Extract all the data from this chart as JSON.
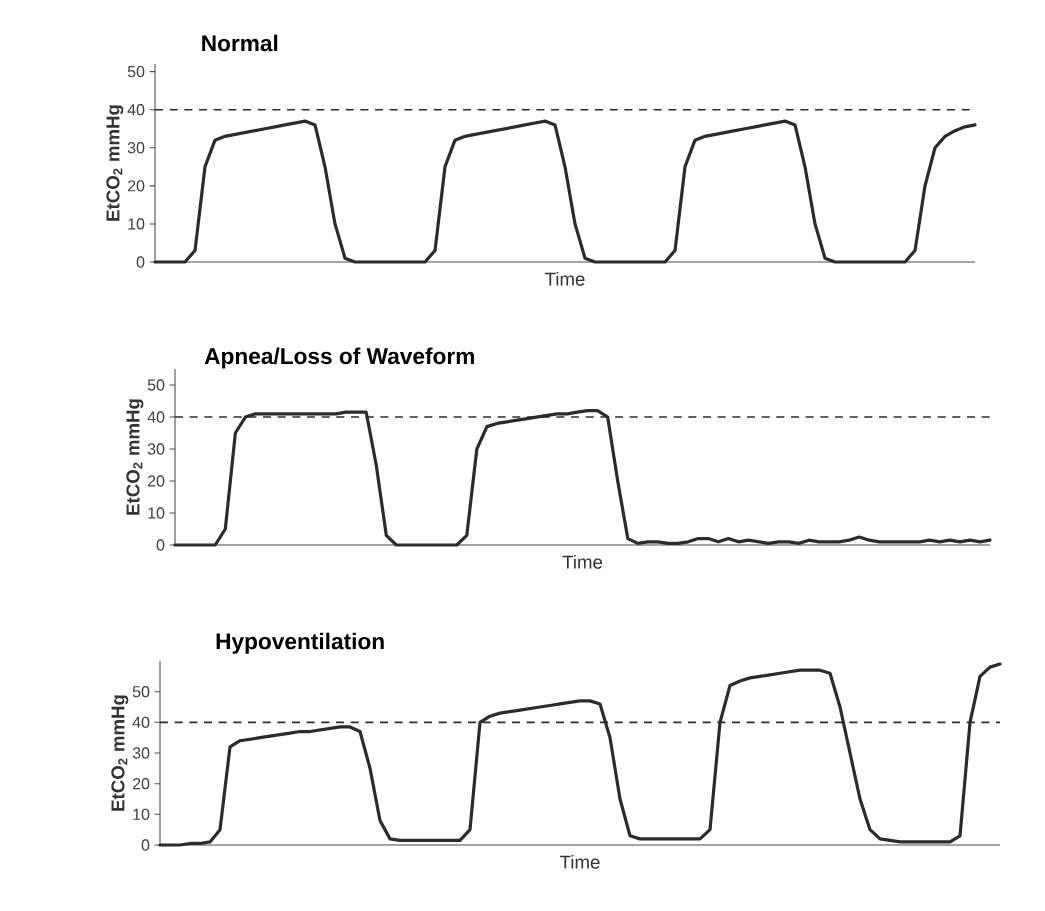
{
  "chart_data": [
    {
      "type": "line",
      "title": "Normal",
      "xlabel": "Time",
      "ylabel": "EtCO$_{2}$ mmHg",
      "color": "#2b2b2b",
      "ylim": [
        0,
        52
      ],
      "yticks": [
        0,
        10,
        20,
        30,
        40,
        50
      ],
      "tick_labels": "y",
      "ref_lines": [
        {
          "axis": "y",
          "value": 40,
          "line_style": "dashed",
          "color": "#2b2b2b"
        }
      ],
      "categories": [
        null,
        null,
        null,
        null,
        null,
        null,
        null,
        null,
        null,
        null,
        null,
        null,
        null,
        null,
        null,
        null,
        null,
        null,
        null,
        null,
        null,
        null,
        null,
        null,
        null,
        null,
        null,
        null,
        null,
        null,
        null,
        null,
        null,
        null,
        null,
        null,
        null,
        null,
        null,
        null,
        null,
        null,
        null,
        null,
        null,
        null,
        null,
        null,
        null,
        null,
        null,
        null,
        null,
        null,
        null,
        null,
        null,
        null,
        null,
        null,
        null,
        null,
        null,
        null,
        null,
        null,
        null,
        null,
        null,
        null,
        null,
        null,
        null,
        null,
        null,
        null,
        null,
        null,
        null,
        null,
        null,
        null,
        null
      ],
      "values": [
        0,
        0,
        0,
        0,
        3,
        25,
        32,
        33,
        33.5,
        34,
        34.5,
        35,
        35.5,
        36,
        36.5,
        37,
        36,
        25,
        10,
        1,
        0,
        0,
        0,
        0,
        0,
        0,
        0,
        0,
        3,
        25,
        32,
        33,
        33.5,
        34,
        34.5,
        35,
        35.5,
        36,
        36.5,
        37,
        36,
        25,
        10,
        1,
        0,
        0,
        0,
        0,
        0,
        0,
        0,
        0,
        3,
        25,
        32,
        33,
        33.5,
        34,
        34.5,
        35,
        35.5,
        36,
        36.5,
        37,
        36,
        25,
        10,
        1,
        0,
        0,
        0,
        0,
        0,
        0,
        0,
        0,
        3,
        20,
        30,
        33,
        34.5,
        35.5,
        36
      ]
    },
    {
      "type": "line",
      "title": "Apnea/Loss of Waveform",
      "xlabel": "Time",
      "ylabel": "EtCO$_{2}$ mmHg",
      "color": "#2b2b2b",
      "ylim": [
        0,
        55
      ],
      "yticks": [
        0,
        10,
        20,
        30,
        40,
        50
      ],
      "tick_labels": "y",
      "ref_lines": [
        {
          "axis": "y",
          "value": 40,
          "line_style": "dashed",
          "color": "#2b2b2b"
        }
      ],
      "categories": [
        null,
        null,
        null,
        null,
        null,
        null,
        null,
        null,
        null,
        null,
        null,
        null,
        null,
        null,
        null,
        null,
        null,
        null,
        null,
        null,
        null,
        null,
        null,
        null,
        null,
        null,
        null,
        null,
        null,
        null,
        null,
        null,
        null,
        null,
        null,
        null,
        null,
        null,
        null,
        null,
        null,
        null,
        null,
        null,
        null,
        null,
        null,
        null,
        null,
        null,
        null,
        null,
        null,
        null,
        null,
        null,
        null,
        null,
        null,
        null,
        null,
        null,
        null,
        null,
        null,
        null,
        null,
        null,
        null,
        null,
        null,
        null,
        null,
        null,
        null,
        null,
        null,
        null,
        null,
        null,
        null,
        null
      ],
      "values": [
        0,
        0,
        0,
        0,
        0,
        5,
        35,
        40,
        41,
        41,
        41,
        41,
        41,
        41,
        41,
        41,
        41,
        41.5,
        41.5,
        41.5,
        25,
        3,
        0,
        0,
        0,
        0,
        0,
        0,
        0,
        3,
        30,
        37,
        38,
        38.5,
        39,
        39.5,
        40,
        40.5,
        41,
        41,
        41.5,
        42,
        42,
        40,
        20,
        2,
        0.5,
        1,
        1,
        0.5,
        0.5,
        1,
        2,
        2,
        1,
        2,
        1,
        1.5,
        1,
        0.5,
        1,
        1,
        0.5,
        1.5,
        1,
        1,
        1,
        1.5,
        2.5,
        1.5,
        1,
        1,
        1,
        1,
        1,
        1.5,
        1,
        1.5,
        1,
        1.5,
        1,
        1.5
      ]
    },
    {
      "type": "line",
      "title": "Hypoventilation",
      "xlabel": "Time",
      "ylabel": "EtCO$_{2}$ mmHg",
      "color": "#2b2b2b",
      "ylim": [
        0,
        60
      ],
      "yticks": [
        0,
        10,
        20,
        30,
        40,
        50
      ],
      "tick_labels": "y",
      "ref_lines": [
        {
          "axis": "y",
          "value": 40,
          "line_style": "dashed",
          "color": "#2b2b2b"
        }
      ],
      "categories": [
        null,
        null,
        null,
        null,
        null,
        null,
        null,
        null,
        null,
        null,
        null,
        null,
        null,
        null,
        null,
        null,
        null,
        null,
        null,
        null,
        null,
        null,
        null,
        null,
        null,
        null,
        null,
        null,
        null,
        null,
        null,
        null,
        null,
        null,
        null,
        null,
        null,
        null,
        null,
        null,
        null,
        null,
        null,
        null,
        null,
        null,
        null,
        null,
        null,
        null,
        null,
        null,
        null,
        null,
        null,
        null,
        null,
        null,
        null,
        null,
        null,
        null,
        null,
        null,
        null,
        null,
        null,
        null,
        null,
        null,
        null,
        null,
        null,
        null,
        null,
        null,
        null,
        null,
        null,
        null,
        null,
        null,
        null,
        null,
        null
      ],
      "values": [
        0,
        0,
        0,
        0.5,
        0.5,
        1,
        5,
        32,
        34,
        34.5,
        35,
        35.5,
        36,
        36.5,
        37,
        37,
        37.5,
        38,
        38.5,
        38.5,
        37,
        25,
        8,
        2,
        1.5,
        1.5,
        1.5,
        1.5,
        1.5,
        1.5,
        1.5,
        5,
        40,
        42,
        43,
        43.5,
        44,
        44.5,
        45,
        45.5,
        46,
        46.5,
        47,
        47,
        46,
        35,
        15,
        3,
        2,
        2,
        2,
        2,
        2,
        2,
        2,
        5,
        40,
        52,
        53.5,
        54.5,
        55,
        55.5,
        56,
        56.5,
        57,
        57,
        57,
        56,
        45,
        30,
        15,
        5,
        2,
        1.5,
        1,
        1,
        1,
        1,
        1,
        1,
        3,
        40,
        55,
        58,
        59
      ]
    }
  ]
}
